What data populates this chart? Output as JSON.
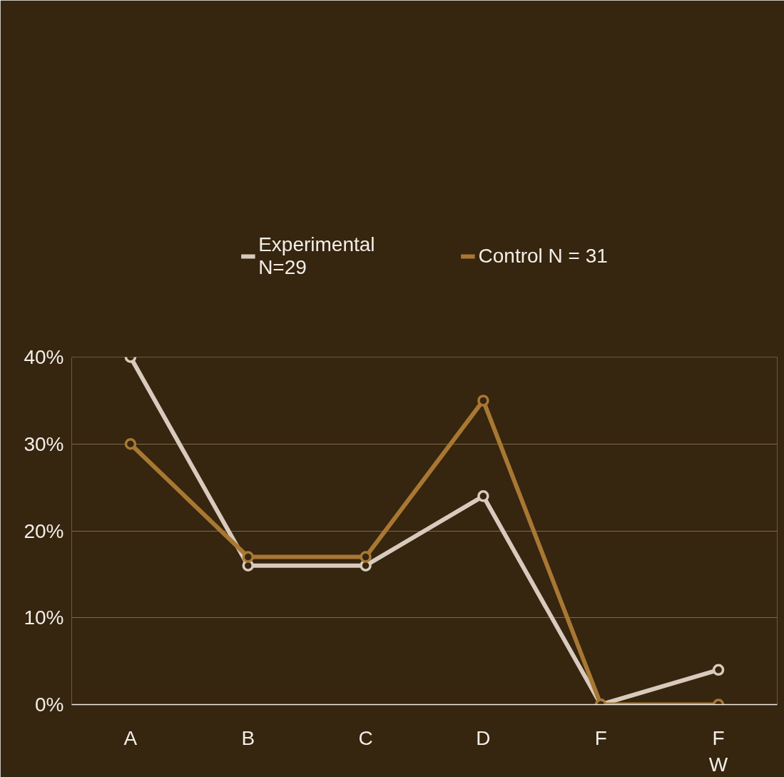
{
  "chart_data": {
    "type": "line",
    "categories": [
      "A",
      "B",
      "C",
      "D",
      "F",
      "F\nW"
    ],
    "series": [
      {
        "name": "Experimental\nN=29",
        "color": "#d8cbbd",
        "values": [
          40,
          16,
          16,
          24,
          0,
          4
        ]
      },
      {
        "name": "Control N = 31",
        "color": "#a87833",
        "values": [
          30,
          17,
          17,
          35,
          0,
          0
        ]
      }
    ],
    "ylim": [
      0,
      40
    ],
    "yticks": [
      {
        "value": 0,
        "label": "0%"
      },
      {
        "value": 10,
        "label": "10%"
      },
      {
        "value": 20,
        "label": "20%"
      },
      {
        "value": 30,
        "label": "30%"
      },
      {
        "value": 40,
        "label": "40%"
      }
    ],
    "grid": "y",
    "legend": "top",
    "marker": "circle",
    "line_style": "solid"
  }
}
